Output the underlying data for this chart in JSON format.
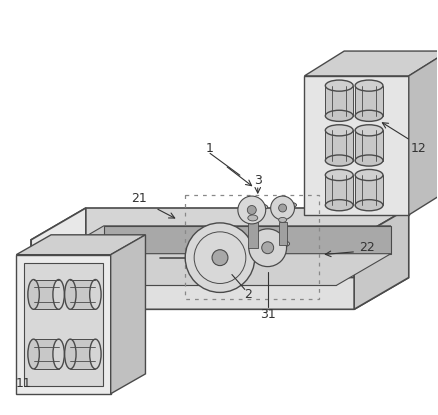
{
  "bg_color": "#ffffff",
  "lc": "#4a4a4a",
  "fc_top": "#d8d8d8",
  "fc_front": "#f2f2f2",
  "fc_side": "#c0c0c0",
  "fc_inner": "#e8e8e8",
  "figsize": [
    4.38,
    4.15
  ],
  "dpi": 100,
  "ann_color": "#333333"
}
